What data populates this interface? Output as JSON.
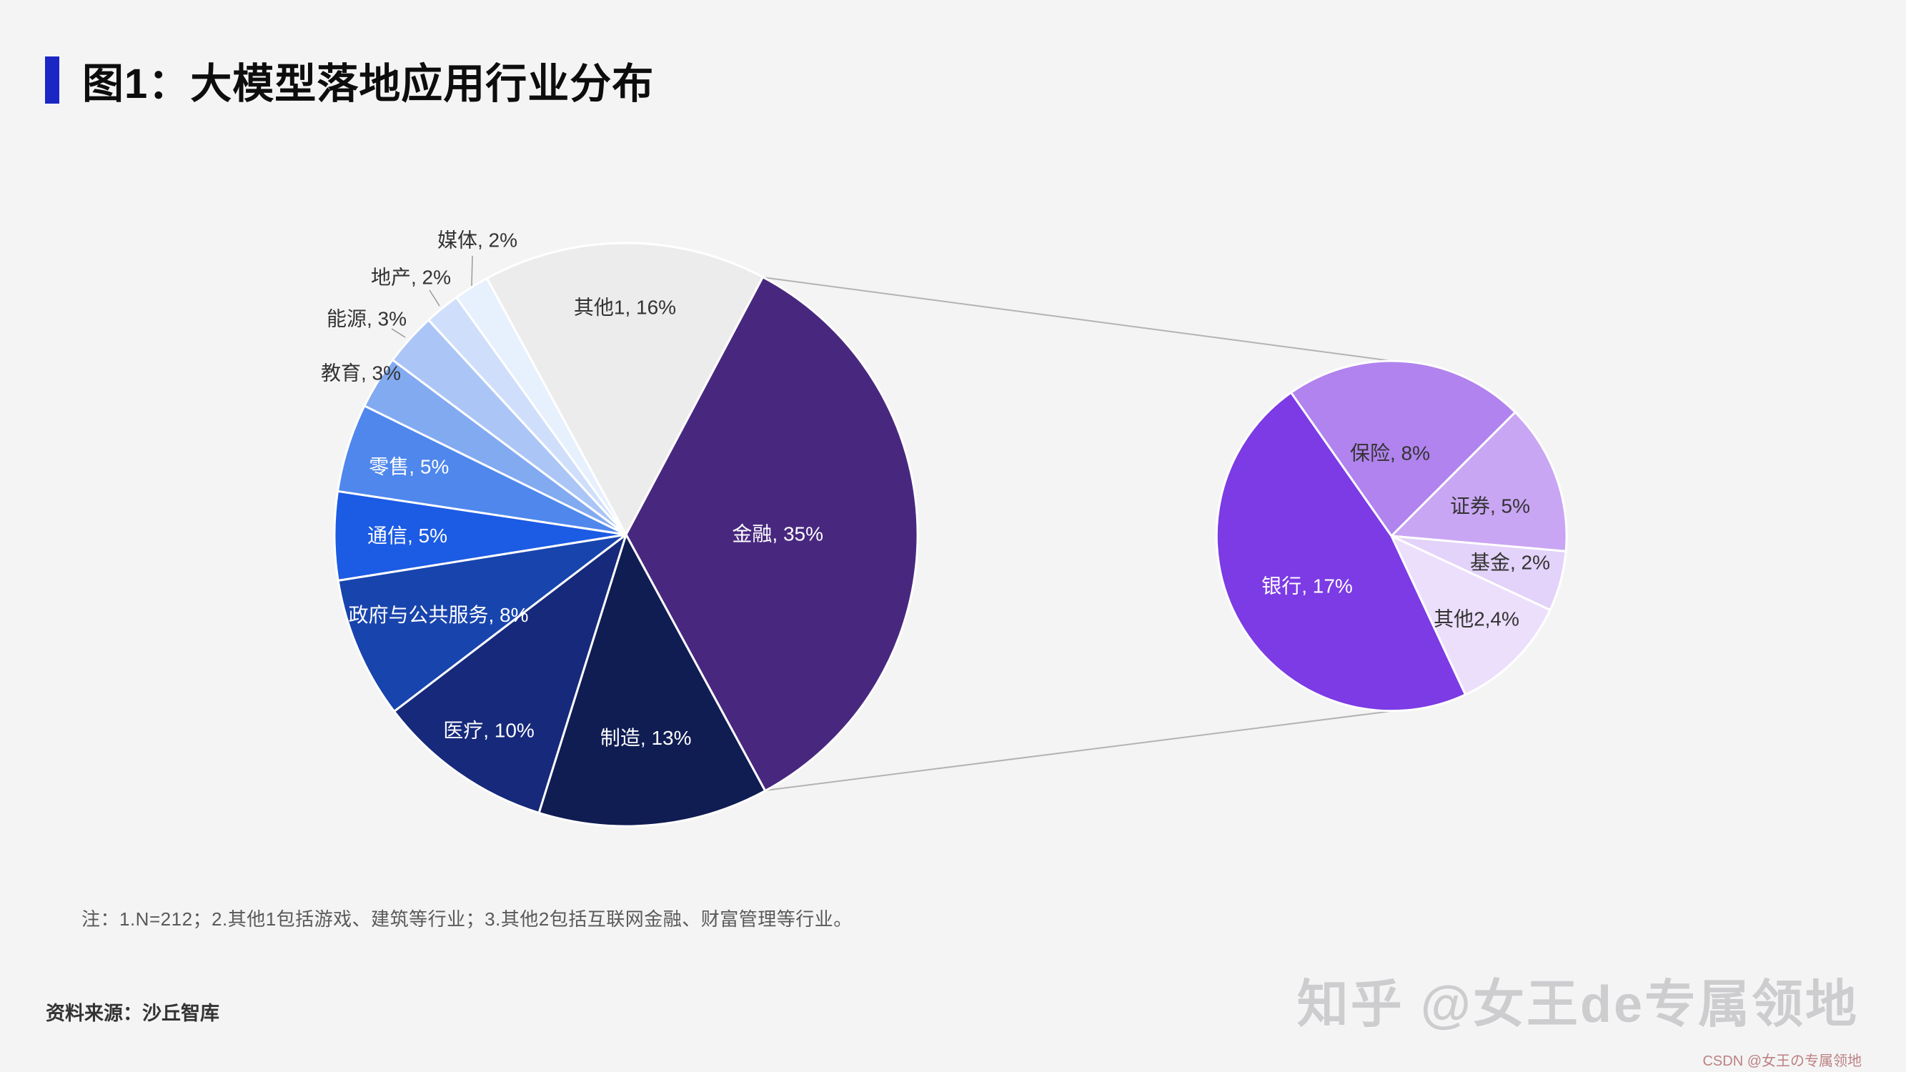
{
  "page": {
    "title": "图1：大模型落地应用行业分布",
    "note": "注：1.N=212；2.其他1包括游戏、建筑等行业；3.其他2包括互联网金融、财富管理等行业。",
    "source_label": "资料来源：沙丘智库",
    "watermark_primary": "知乎 @女王de专属领地",
    "watermark_secondary": "CSDN @女王の专属领地",
    "accent_color": "#1b27c4",
    "background_color": "#f4f4f5"
  },
  "chart_data": [
    {
      "type": "pie",
      "id": "industry-distribution",
      "title": "大模型落地应用行业分布",
      "unit": "%",
      "sample_note": "N=212",
      "slices": [
        {
          "name": "其他1",
          "value": 16,
          "label": "其他1, 16%",
          "color": "#ececec",
          "label_color": "#333333",
          "label_placement": "inside"
        },
        {
          "name": "金融",
          "value": 35,
          "label": "金融, 35%",
          "color": "#48287f",
          "label_color": "#ffffff",
          "label_placement": "inside"
        },
        {
          "name": "制造",
          "value": 13,
          "label": "制造, 13%",
          "color": "#101d53",
          "label_color": "#ffffff",
          "label_placement": "inside"
        },
        {
          "name": "医疗",
          "value": 10,
          "label": "医疗, 10%",
          "color": "#16297b",
          "label_color": "#ffffff",
          "label_placement": "inside"
        },
        {
          "name": "政府与公共服务",
          "value": 8,
          "label": "政府与公共服务, 8%",
          "color": "#1844ad",
          "label_color": "#ffffff",
          "label_placement": "inside"
        },
        {
          "name": "通信",
          "value": 5,
          "label": "通信, 5%",
          "color": "#1c5be4",
          "label_color": "#ffffff",
          "label_placement": "inside"
        },
        {
          "name": "零售",
          "value": 5,
          "label": "零售, 5%",
          "color": "#4f87ec",
          "label_color": "#ffffff",
          "label_placement": "inside"
        },
        {
          "name": "教育",
          "value": 3,
          "label": "教育, 3%",
          "color": "#82aaf1",
          "label_color": "#333333",
          "label_placement": "outside"
        },
        {
          "name": "能源",
          "value": 3,
          "label": "能源, 3%",
          "color": "#abc6f6",
          "label_color": "#333333",
          "label_placement": "outside"
        },
        {
          "name": "地产",
          "value": 2,
          "label": "地产, 2%",
          "color": "#cfdffb",
          "label_color": "#333333",
          "label_placement": "outside"
        },
        {
          "name": "媒体",
          "value": 2,
          "label": "媒体, 2%",
          "color": "#e7f0fd",
          "label_color": "#333333",
          "label_placement": "outside"
        }
      ]
    },
    {
      "type": "pie",
      "id": "finance-breakdown",
      "unit": "%",
      "parent_slice": "金融",
      "slices": [
        {
          "name": "保险",
          "value": 8,
          "label": "保险, 8%",
          "color": "#b183ee",
          "label_color": "#333333",
          "label_placement": "inside"
        },
        {
          "name": "证券",
          "value": 5,
          "label": "证券, 5%",
          "color": "#c9a6f3",
          "label_color": "#333333",
          "label_placement": "inside"
        },
        {
          "name": "基金",
          "value": 2,
          "label": "基金, 2%",
          "color": "#e3d2f9",
          "label_color": "#333333",
          "label_placement": "inside"
        },
        {
          "name": "其他2",
          "value": 4,
          "label": "其他2,4%",
          "color": "#ecdffc",
          "label_color": "#333333",
          "label_placement": "inside"
        },
        {
          "name": "银行",
          "value": 17,
          "label": "银行, 17%",
          "color": "#7c3be4",
          "label_color": "#ffffff",
          "label_placement": "inside"
        }
      ]
    }
  ]
}
